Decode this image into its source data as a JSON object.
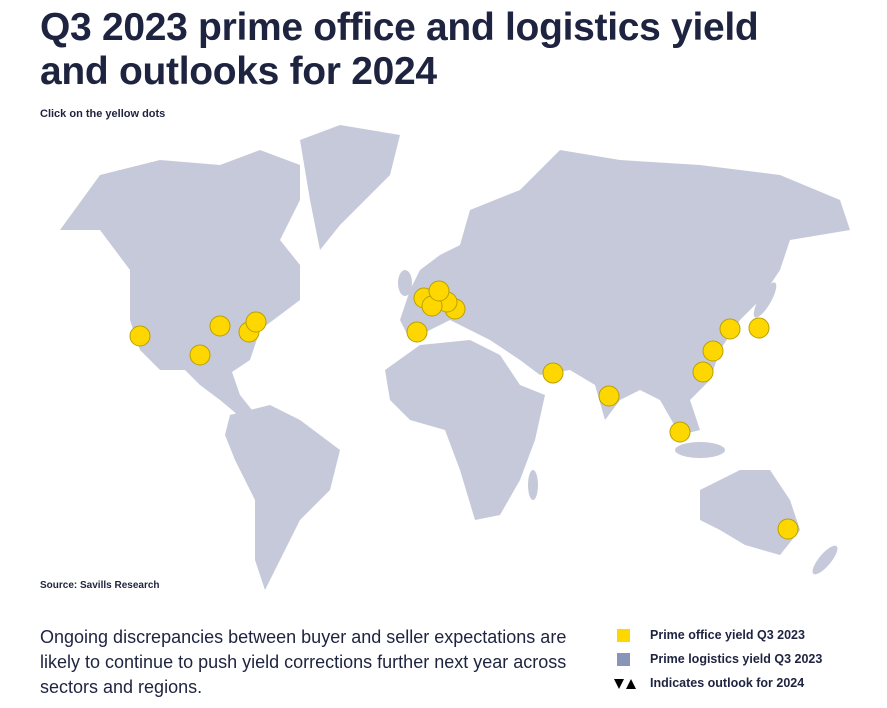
{
  "header": {
    "title": "Q3 2023 prime office and logistics yield and outlooks for 2024",
    "subtitle": "Click on the yellow dots"
  },
  "map": {
    "source": "Source: Savills Research"
  },
  "body": {
    "text": "Ongoing discrepancies between buyer and seller expectations are likely to continue to push yield corrections further next year across sectors and regions."
  },
  "legend": {
    "items": [
      "Prime office yield Q3 2023",
      "Prime logistics yield Q3 2023",
      "Indicates outlook for 2024"
    ]
  }
}
